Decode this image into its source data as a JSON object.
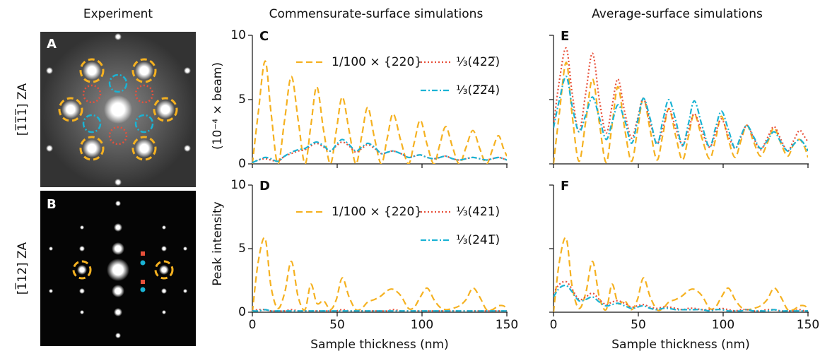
{
  "column_titles": [
    "Experiment",
    "Commensurate-surface simulations",
    "Average-surface simulations"
  ],
  "axis_title": {
    "y_label": "Peak intensity",
    "y_unit": "(10⁻⁴ × beam)"
  },
  "images": [
    {
      "label": "A",
      "zone_axis": "[1̅1̅1̅] ZA"
    },
    {
      "label": "B",
      "zone_axis": "[1̅12] ZA"
    }
  ],
  "chart_data": [
    {
      "type": "line",
      "panel": "C",
      "ytick_labels_shown": true,
      "xtick_labels_shown": false,
      "x": [
        0,
        3.5,
        7.5,
        11,
        15,
        19,
        23,
        27,
        31,
        34.5,
        38,
        42,
        46,
        49.5,
        53,
        57,
        61,
        64.5,
        68,
        72,
        76,
        79.5,
        83,
        87.5,
        92,
        95.5,
        99,
        103,
        107,
        110.5,
        114,
        118,
        122,
        126,
        130,
        134,
        138,
        141.5,
        145,
        148,
        150
      ],
      "xlim": [
        0,
        150
      ],
      "xticks": [
        0,
        50,
        100,
        150
      ],
      "ylim": [
        0,
        10
      ],
      "yticks": [
        0,
        5,
        10
      ],
      "series": [
        {
          "name": "1/100 × {220}",
          "color": "#f5b120",
          "linestyle": "dashed",
          "values": [
            0,
            4,
            8.0,
            4,
            0,
            3.4,
            6.8,
            3.4,
            0,
            3,
            6.0,
            2.6,
            0,
            2.6,
            5.2,
            2.6,
            0,
            2.2,
            4.4,
            2.0,
            0,
            2.0,
            3.9,
            1.8,
            0,
            1.7,
            3.4,
            1.5,
            0,
            1.5,
            2.9,
            1.3,
            0,
            1.3,
            2.6,
            1.2,
            0,
            1.1,
            2.2,
            1.2,
            0.6
          ]
        },
        {
          "name": "⅓(422̅)",
          "color": "#e8503a",
          "linestyle": "dotted",
          "values": [
            0.1,
            0.3,
            0.4,
            0.3,
            0.2,
            0.6,
            0.8,
            1.0,
            1.1,
            1.4,
            1.6,
            1.3,
            1.0,
            1.4,
            1.7,
            1.4,
            0.9,
            1.2,
            1.5,
            1.2,
            0.8,
            0.9,
            1.0,
            0.8,
            0.5,
            0.6,
            0.7,
            0.5,
            0.4,
            0.5,
            0.6,
            0.4,
            0.3,
            0.4,
            0.5,
            0.4,
            0.3,
            0.4,
            0.5,
            0.4,
            0.3
          ]
        },
        {
          "name": "⅓(2̅2̅4)",
          "color": "#1ab3d4",
          "linestyle": "dashdot",
          "values": [
            0.1,
            0.3,
            0.5,
            0.4,
            0.2,
            0.6,
            0.9,
            1.1,
            1.2,
            1.5,
            1.7,
            1.4,
            1.0,
            1.5,
            1.9,
            1.5,
            1.0,
            1.3,
            1.6,
            1.3,
            0.8,
            0.9,
            1.0,
            0.8,
            0.5,
            0.6,
            0.7,
            0.5,
            0.4,
            0.5,
            0.6,
            0.4,
            0.3,
            0.4,
            0.5,
            0.4,
            0.3,
            0.4,
            0.5,
            0.4,
            0.3
          ]
        }
      ]
    },
    {
      "type": "line",
      "panel": "D",
      "ytick_labels_shown": true,
      "xtick_labels_shown": true,
      "xlabel": "Sample thickness (nm)",
      "x": [
        0,
        3.5,
        7.5,
        11,
        15,
        19,
        23,
        27,
        31,
        34.5,
        38,
        42,
        46,
        49.5,
        53,
        57,
        61,
        64.5,
        68,
        72,
        76,
        79.5,
        83,
        87.5,
        92,
        95.5,
        99,
        103,
        107,
        110.5,
        114,
        118,
        122,
        126,
        130,
        134,
        138,
        141.5,
        145,
        148,
        150
      ],
      "xlim": [
        0,
        150
      ],
      "xticks": [
        0,
        50,
        100,
        150
      ],
      "ylim": [
        0,
        10
      ],
      "yticks": [
        0,
        5,
        10
      ],
      "series": [
        {
          "name": "1/100 × {220}",
          "color": "#f5b120",
          "linestyle": "dashed",
          "values": [
            0,
            4,
            5.8,
            2,
            0.3,
            1.5,
            4.0,
            1.2,
            0.2,
            2.2,
            0.7,
            0.9,
            0.2,
            1.0,
            2.7,
            1.2,
            0.2,
            0.3,
            0.8,
            1.0,
            1.3,
            1.7,
            1.8,
            1.3,
            0.3,
            0.4,
            1.2,
            1.9,
            1.0,
            0.4,
            0.2,
            0.3,
            0.5,
            1.0,
            1.9,
            1.2,
            0.2,
            0.2,
            0.5,
            0.5,
            0.3
          ]
        },
        {
          "name": "⅓(421)",
          "color": "#e8503a",
          "linestyle": "dotted",
          "values": [
            0.1,
            0.2,
            0.2,
            0.1,
            0.1,
            0.1,
            0.2,
            0.1,
            0.1,
            0.1,
            0.1,
            0.1,
            0.1,
            0.1,
            0.2,
            0.1,
            0.1,
            0.1,
            0.1,
            0.1,
            0.1,
            0.1,
            0.2,
            0.1,
            0.1,
            0.1,
            0.1,
            0.1,
            0.1,
            0.1,
            0.1,
            0.1,
            0.1,
            0.1,
            0.1,
            0.1,
            0.1,
            0.1,
            0.1,
            0.1,
            0.1
          ]
        },
        {
          "name": "⅓(241̅)",
          "color": "#1ab3d4",
          "linestyle": "dashdot",
          "values": [
            0.1,
            0.1,
            0.2,
            0.1,
            0.1,
            0.1,
            0.1,
            0.1,
            0.1,
            0.1,
            0.1,
            0.1,
            0.1,
            0.1,
            0.1,
            0.1,
            0.1,
            0.1,
            0.1,
            0.1,
            0.1,
            0.1,
            0.1,
            0.1,
            0.1,
            0.1,
            0.1,
            0.1,
            0.1,
            0.1,
            0.1,
            0.1,
            0.1,
            0.1,
            0.1,
            0.1,
            0.1,
            0.1,
            0.1,
            0.1,
            0.1
          ]
        }
      ]
    },
    {
      "type": "line",
      "panel": "E",
      "ytick_labels_shown": false,
      "xtick_labels_shown": false,
      "x": [
        0,
        3.5,
        7.5,
        11,
        15,
        19,
        23,
        27,
        31,
        34.5,
        38,
        42,
        46,
        49.5,
        53,
        57,
        61,
        64.5,
        68,
        72,
        76,
        79.5,
        83,
        87.5,
        92,
        95.5,
        99,
        103,
        107,
        110.5,
        114,
        118,
        122,
        126,
        130,
        134,
        138,
        141.5,
        145,
        148,
        150
      ],
      "xlim": [
        0,
        150
      ],
      "xticks": [
        0,
        50,
        100,
        150
      ],
      "ylim": [
        0,
        10
      ],
      "yticks": [
        0,
        5,
        10
      ],
      "series": [
        {
          "color": "#f5b120",
          "linestyle": "dashed",
          "values": [
            0,
            4,
            7.9,
            3.8,
            0.2,
            3.3,
            6.6,
            3.2,
            0.1,
            3,
            6.0,
            2.7,
            0.2,
            2.6,
            5.1,
            2.6,
            0.3,
            2.3,
            4.3,
            2.2,
            0.3,
            2.1,
            3.9,
            2.0,
            0.4,
            1.9,
            3.7,
            1.9,
            0.5,
            1.8,
            3.0,
            1.7,
            0.6,
            1.6,
            2.8,
            1.6,
            0.6,
            1.5,
            1.9,
            1.3,
            0.5
          ]
        },
        {
          "color": "#e8503a",
          "linestyle": "dotted",
          "values": [
            3,
            6.5,
            9.0,
            5.5,
            2.5,
            5.5,
            8.6,
            5.0,
            2.4,
            4.5,
            6.6,
            4.0,
            2.0,
            3.5,
            5.1,
            3.2,
            1.6,
            2.8,
            4.3,
            2.8,
            1.5,
            2.6,
            3.9,
            2.5,
            1.3,
            2.4,
            3.5,
            2.2,
            1.2,
            2.1,
            3.0,
            2.0,
            1.1,
            2.0,
            2.9,
            1.9,
            1.0,
            1.8,
            2.6,
            2.1,
            1.7
          ]
        },
        {
          "color": "#1ab3d4",
          "linestyle": "dashdot",
          "values": [
            2.8,
            5,
            6.8,
            4.5,
            2.5,
            3.8,
            5.2,
            3.6,
            1.9,
            3.2,
            4.6,
            3.4,
            1.6,
            3.3,
            5.1,
            3.5,
            1.5,
            3.4,
            5.0,
            3.4,
            1.4,
            3.1,
            4.9,
            3.0,
            1.3,
            2.8,
            4.1,
            2.7,
            1.2,
            2.2,
            3.0,
            2.1,
            1.2,
            1.8,
            2.5,
            1.7,
            1.0,
            1.5,
            1.9,
            1.5,
            1.0
          ]
        }
      ]
    },
    {
      "type": "line",
      "panel": "F",
      "ytick_labels_shown": false,
      "xtick_labels_shown": true,
      "xlabel": "Sample thickness (nm)",
      "x": [
        0,
        3.5,
        7.5,
        11,
        15,
        19,
        23,
        27,
        31,
        34.5,
        38,
        42,
        46,
        49.5,
        53,
        57,
        61,
        64.5,
        68,
        72,
        76,
        79.5,
        83,
        87.5,
        92,
        95.5,
        99,
        103,
        107,
        110.5,
        114,
        118,
        122,
        126,
        130,
        134,
        138,
        141.5,
        145,
        148,
        150
      ],
      "xlim": [
        0,
        150
      ],
      "xticks": [
        0,
        50,
        100,
        150
      ],
      "ylim": [
        0,
        10
      ],
      "yticks": [
        0,
        5,
        10
      ],
      "series": [
        {
          "color": "#f5b120",
          "linestyle": "dashed",
          "values": [
            0,
            4,
            5.8,
            2,
            0.3,
            1.5,
            4.0,
            1.2,
            0.2,
            2.2,
            0.7,
            0.9,
            0.2,
            1.0,
            2.7,
            1.2,
            0.2,
            0.3,
            0.8,
            1.0,
            1.3,
            1.7,
            1.8,
            1.3,
            0.3,
            0.4,
            1.2,
            1.9,
            1.0,
            0.4,
            0.2,
            0.3,
            0.5,
            1.0,
            1.9,
            1.2,
            0.2,
            0.2,
            0.5,
            0.5,
            0.3
          ]
        },
        {
          "color": "#e8503a",
          "linestyle": "dotted",
          "values": [
            1.5,
            2.2,
            2.4,
            1.8,
            1.0,
            1.2,
            1.5,
            1.0,
            0.6,
            0.8,
            0.9,
            0.7,
            0.4,
            0.5,
            0.6,
            0.4,
            0.3,
            0.4,
            0.4,
            0.3,
            0.2,
            0.3,
            0.3,
            0.2,
            0.2,
            0.2,
            0.3,
            0.2,
            0.1,
            0.2,
            0.2,
            0.1,
            0.1,
            0.2,
            0.2,
            0.1,
            0.1,
            0.1,
            0.2,
            0.1,
            0.1
          ]
        },
        {
          "color": "#1ab3d4",
          "linestyle": "dashdot",
          "values": [
            1.2,
            1.9,
            2.1,
            1.6,
            0.9,
            1.0,
            1.2,
            0.8,
            0.5,
            0.6,
            0.7,
            0.5,
            0.3,
            0.4,
            0.5,
            0.3,
            0.2,
            0.3,
            0.3,
            0.2,
            0.2,
            0.2,
            0.2,
            0.2,
            0.1,
            0.2,
            0.2,
            0.1,
            0.1,
            0.1,
            0.2,
            0.1,
            0.1,
            0.1,
            0.2,
            0.1,
            0.1,
            0.1,
            0.1,
            0.1,
            0.1
          ]
        }
      ]
    }
  ]
}
